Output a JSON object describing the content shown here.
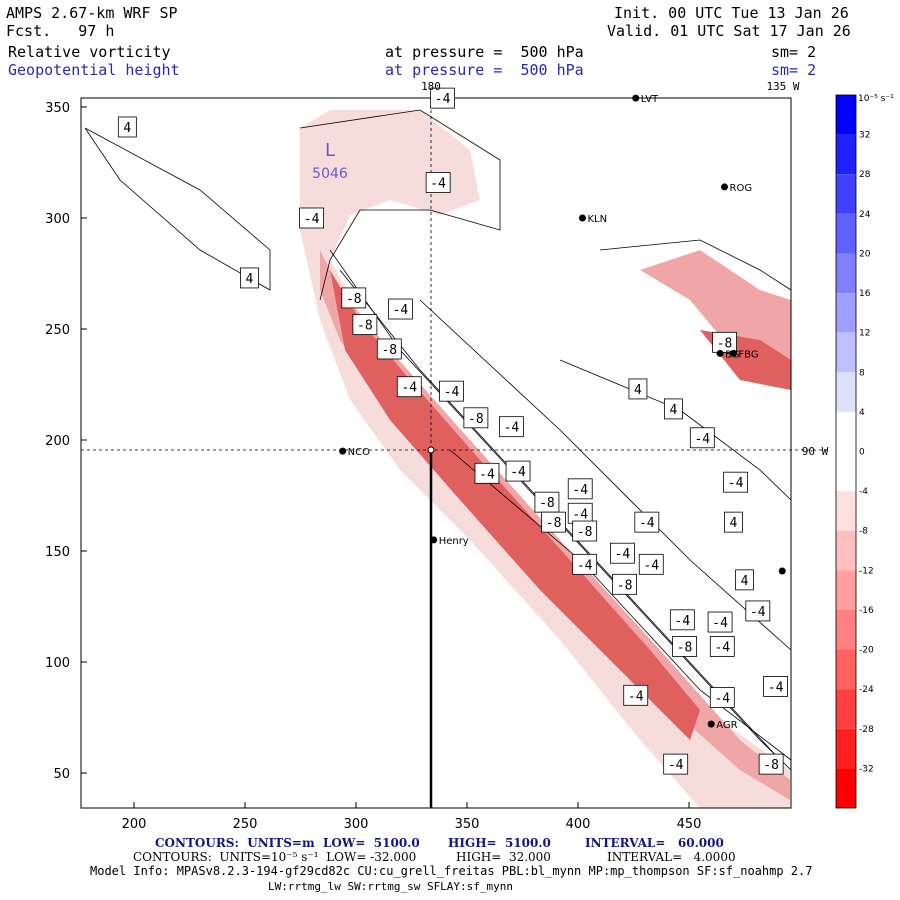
{
  "header": {
    "model": "AMPS 2.67-km WRF SP",
    "forecast": "Fcst.   97 h",
    "init": "Init. 00 UTC Tue 13 Jan 26",
    "valid": "Valid. 01 UTC Sat 17 Jan 26",
    "field1_name": "Relative vorticity",
    "field1_level": "at pressure =  500 hPa",
    "field1_sm": "sm= 2",
    "field2_name": "Geopotential height",
    "field2_level": "at pressure =  500 hPa",
    "field2_sm": "sm= 2"
  },
  "map": {
    "top_label_180": "180",
    "top_label_135w": "135 W",
    "right_label_90w": "90 W",
    "low_label": "L",
    "low_value": "5046",
    "stations": [
      {
        "name": "LVT",
        "x": 426,
        "y": 354
      },
      {
        "name": "ROG",
        "x": 466,
        "y": 314
      },
      {
        "name": "KLN",
        "x": 402,
        "y": 300
      },
      {
        "name": "BG",
        "x": 464,
        "y": 239
      },
      {
        "name": "FBG",
        "x": 470,
        "y": 239
      },
      {
        "name": "NCO",
        "x": 294,
        "y": 195
      },
      {
        "name": "Henry",
        "x": 335,
        "y": 155
      },
      {
        "name": "AGR",
        "x": 460,
        "y": 72
      },
      {
        "name": "",
        "x": 492,
        "y": 141
      }
    ],
    "x_ticks": [
      "200",
      "250",
      "300",
      "350",
      "400",
      "450"
    ],
    "y_ticks": [
      "350",
      "300",
      "250",
      "200",
      "150",
      "100",
      "50"
    ],
    "contour_labels": [
      {
        "text": "4",
        "x": 197,
        "y": 341
      },
      {
        "text": "4",
        "x": 252,
        "y": 273
      },
      {
        "text": "-4",
        "x": 339,
        "y": 354
      },
      {
        "text": "-4",
        "x": 337,
        "y": 316
      },
      {
        "text": "-4",
        "x": 280,
        "y": 300
      },
      {
        "text": "-8",
        "x": 299,
        "y": 264
      },
      {
        "text": "-4",
        "x": 320,
        "y": 259
      },
      {
        "text": "-8",
        "x": 304,
        "y": 252
      },
      {
        "text": "-8",
        "x": 315,
        "y": 241
      },
      {
        "text": "-4",
        "x": 324,
        "y": 224
      },
      {
        "text": "-4",
        "x": 343,
        "y": 222
      },
      {
        "text": "-8",
        "x": 354,
        "y": 210
      },
      {
        "text": "-4",
        "x": 370,
        "y": 206
      },
      {
        "text": "-4",
        "x": 359,
        "y": 185
      },
      {
        "text": "-4",
        "x": 373,
        "y": 186
      },
      {
        "text": "-4",
        "x": 401,
        "y": 178
      },
      {
        "text": "-8",
        "x": 386,
        "y": 172
      },
      {
        "text": "-4",
        "x": 401,
        "y": 167
      },
      {
        "text": "-8",
        "x": 389,
        "y": 163
      },
      {
        "text": "-8",
        "x": 403,
        "y": 159
      },
      {
        "text": "-4",
        "x": 420,
        "y": 149
      },
      {
        "text": "-4",
        "x": 403,
        "y": 144
      },
      {
        "text": "-8",
        "x": 421,
        "y": 135
      },
      {
        "text": "-4",
        "x": 433,
        "y": 144
      },
      {
        "text": "-4",
        "x": 431,
        "y": 163
      },
      {
        "text": "4",
        "x": 427,
        "y": 223
      },
      {
        "text": "4",
        "x": 443,
        "y": 214
      },
      {
        "text": "-4",
        "x": 456,
        "y": 201
      },
      {
        "text": "-4",
        "x": 471,
        "y": 181
      },
      {
        "text": "4",
        "x": 470,
        "y": 163
      },
      {
        "text": "4",
        "x": 475,
        "y": 137
      },
      {
        "text": "-4",
        "x": 481,
        "y": 123
      },
      {
        "text": "-4",
        "x": 464,
        "y": 118
      },
      {
        "text": "-4",
        "x": 447,
        "y": 119
      },
      {
        "text": "-8",
        "x": 448,
        "y": 107
      },
      {
        "text": "-4",
        "x": 465,
        "y": 107
      },
      {
        "text": "-4",
        "x": 489,
        "y": 89
      },
      {
        "text": "-4",
        "x": 426,
        "y": 85
      },
      {
        "text": "-4",
        "x": 465,
        "y": 84
      },
      {
        "text": "-4",
        "x": 444,
        "y": 54
      },
      {
        "text": "-8",
        "x": 487,
        "y": 54
      },
      {
        "text": "-8",
        "x": 466,
        "y": 244
      }
    ]
  },
  "colorbar": {
    "unit_label": "10⁻⁵ s⁻¹",
    "levels": [
      "32",
      "28",
      "24",
      "20",
      "16",
      "12",
      "8",
      "4",
      "0",
      "-4",
      "-8",
      "-12",
      "-16",
      "-20",
      "-24",
      "-28",
      "-32"
    ]
  },
  "footer": {
    "contours1_prefix": "CONTOURS:  UNITS=m  LOW=  5100.0",
    "contours1_high": "HIGH=  5100.0",
    "contours1_interval": "INTERVAL=   60.000",
    "contours2_prefix": "CONTOURS:  UNITS=10⁻⁵ s⁻¹  LOW= -32.000",
    "contours2_high": "HIGH=  32.000",
    "contours2_interval": "INTERVAL=   4.0000",
    "model_info": "Model Info: MPASv8.2.3-194-gf29cd82c CU:cu_grell_freitas PBL:bl_mynn MP:mp_thompson SF:sf_noahmp 2.7",
    "model_info2": "LW:rrtmg_lw SW:rrtmg_sw SFLAY:sf_mynn"
  },
  "colors": {
    "light_pink": "#f7dcdc",
    "pink": "#f0a6a6",
    "salmon": "#e06060",
    "colorbar_top": "#0000ff",
    "colorbar_bottom": "#ff0000"
  }
}
